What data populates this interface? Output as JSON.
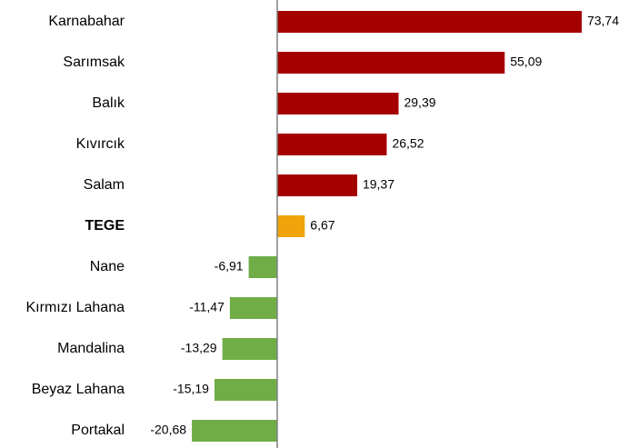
{
  "chart_data": {
    "type": "bar",
    "orientation": "horizontal",
    "categories": [
      "Karnabahar",
      "Sarımsak",
      "Balık",
      "Kıvırcık",
      "Salam",
      "TEGE",
      "Nane",
      "Kırmızı Lahana",
      "Mandalina",
      "Beyaz Lahana",
      "Portakal"
    ],
    "values": [
      73.74,
      55.09,
      29.39,
      26.52,
      19.37,
      6.67,
      -6.91,
      -11.47,
      -13.29,
      -15.19,
      -20.68
    ],
    "value_labels": [
      "73,74",
      "55,09",
      "29,39",
      "26,52",
      "19,37",
      "6,67",
      "-6,91",
      "-11,47",
      "-13,29",
      "-15,19",
      "-20,68"
    ],
    "colors": [
      "#a50000",
      "#a50000",
      "#a50000",
      "#a50000",
      "#a50000",
      "#f0a30a",
      "#70ad47",
      "#70ad47",
      "#70ad47",
      "#70ad47",
      "#70ad47"
    ],
    "xlim": [
      -30,
      80
    ]
  }
}
